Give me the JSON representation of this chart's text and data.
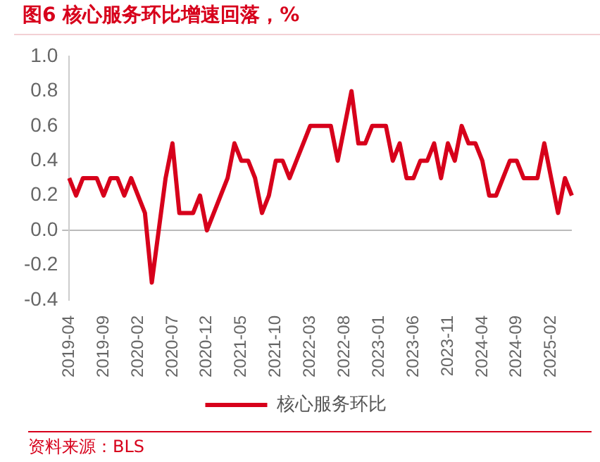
{
  "chart_data": {
    "type": "line",
    "title": "图6  核心服务环比增速回落，%",
    "annotations": [
      "资料来源：BLS"
    ],
    "categories": [
      "2019-04",
      null,
      null,
      null,
      null,
      "2019-09",
      null,
      null,
      null,
      null,
      "2020-02",
      null,
      null,
      null,
      null,
      "2020-07",
      null,
      null,
      null,
      null,
      "2020-12",
      null,
      null,
      null,
      null,
      "2021-05",
      null,
      null,
      null,
      null,
      "2021-10",
      null,
      null,
      null,
      null,
      "2022-03",
      null,
      null,
      null,
      null,
      "2022-08",
      null,
      null,
      null,
      null,
      "2023-01",
      null,
      null,
      null,
      null,
      "2023-06",
      null,
      null,
      null,
      null,
      "2023-11",
      null,
      null,
      null,
      null,
      "2024-04",
      null,
      null,
      null,
      null,
      "2024-09",
      null,
      null,
      null,
      null,
      "2025-02",
      null,
      null,
      null
    ],
    "series": [
      {
        "name": "核心服务环比",
        "color": "#d7001b",
        "values": [
          0.3,
          0.2,
          0.3,
          0.3,
          0.3,
          0.2,
          0.3,
          0.3,
          0.2,
          0.3,
          0.2,
          0.1,
          -0.3,
          0.0,
          0.3,
          0.5,
          0.1,
          0.1,
          0.1,
          0.2,
          0.0,
          0.1,
          0.2,
          0.3,
          0.5,
          0.4,
          0.4,
          0.3,
          0.1,
          0.2,
          0.4,
          0.4,
          0.3,
          0.4,
          0.5,
          0.6,
          0.6,
          0.6,
          0.6,
          0.4,
          0.6,
          0.8,
          0.5,
          0.5,
          0.6,
          0.6,
          0.6,
          0.4,
          0.5,
          0.3,
          0.3,
          0.4,
          0.4,
          0.5,
          0.3,
          0.5,
          0.4,
          0.6,
          0.5,
          0.5,
          0.4,
          0.2,
          0.2,
          0.3,
          0.4,
          0.4,
          0.3,
          0.3,
          0.3,
          0.5,
          0.3,
          0.1,
          0.3,
          0.2
        ]
      }
    ],
    "ylim": [
      -0.4,
      1.0
    ],
    "yticks": [
      {
        "value": -0.4,
        "label": "-0.4"
      },
      {
        "value": -0.2,
        "label": "-0.2"
      },
      {
        "value": 0,
        "label": "0.0"
      },
      {
        "value": 0.2,
        "label": "0.2"
      },
      {
        "value": 0.4,
        "label": "0.4"
      },
      {
        "value": 0.6,
        "label": "0.6"
      },
      {
        "value": 0.8,
        "label": "0.8"
      },
      {
        "value": 1,
        "label": "1.0"
      }
    ],
    "legend": "bottom",
    "marker": "none",
    "line_style": "solid"
  }
}
